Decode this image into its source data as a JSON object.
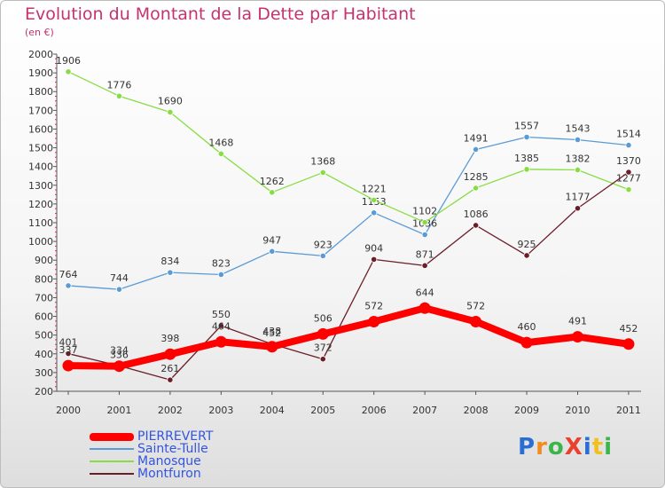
{
  "header": {
    "title": "Evolution du Montant de la Dette par Habitant",
    "subtitle": "(en €)"
  },
  "logo": {
    "text": "ProXiti"
  },
  "chart_data": {
    "type": "line",
    "title": "Evolution du Montant de la Dette par Habitant",
    "subtitle": "(en €)",
    "categories": [
      "2000",
      "2001",
      "2002",
      "2003",
      "2004",
      "2005",
      "2006",
      "2007",
      "2008",
      "2009",
      "2010",
      "2011"
    ],
    "ylim": [
      200,
      2000
    ],
    "yticks": [
      200,
      300,
      400,
      500,
      600,
      700,
      800,
      900,
      1000,
      1100,
      1200,
      1300,
      1400,
      1500,
      1600,
      1700,
      1800,
      1900,
      2000
    ],
    "grid": false,
    "legend_position": "bottom-left",
    "series": [
      {
        "name": "PIERREVERT",
        "color": "#ff0000",
        "values": [
          337,
          334,
          398,
          464,
          438,
          506,
          572,
          644,
          572,
          460,
          491,
          452
        ]
      },
      {
        "name": "Sainte-Tulle",
        "color": "#5b9bd5",
        "values": [
          764,
          744,
          834,
          823,
          947,
          923,
          1153,
          1036,
          1491,
          1557,
          1543,
          1514
        ]
      },
      {
        "name": "Manosque",
        "color": "#88dd44",
        "values": [
          1906,
          1776,
          1690,
          1468,
          1262,
          1368,
          1221,
          1102,
          1285,
          1385,
          1382,
          1277
        ]
      },
      {
        "name": "Montfuron",
        "color": "#6b1d28",
        "values": [
          401,
          336,
          261,
          550,
          452,
          372,
          904,
          871,
          1086,
          925,
          1177,
          1370
        ]
      }
    ]
  }
}
